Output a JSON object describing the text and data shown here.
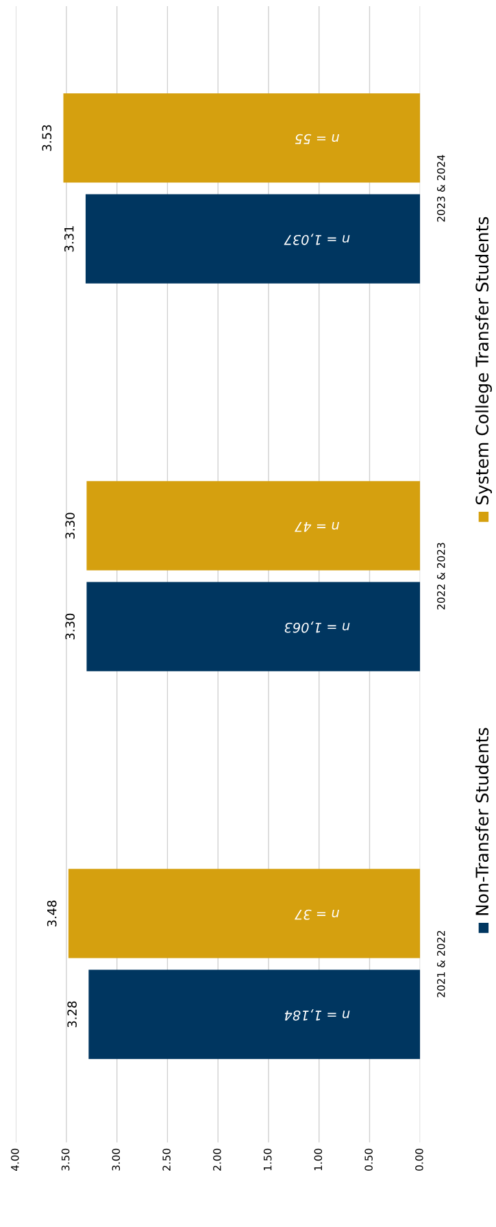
{
  "chart_data": {
    "type": "bar",
    "orientation": "horizontal",
    "categories": [
      "2023 & 2024",
      "2022 & 2023",
      "2021 & 2022"
    ],
    "series": [
      {
        "name": "Non-Transfer Students",
        "color": "#003660",
        "values": [
          3.31,
          3.3,
          3.28
        ],
        "value_labels": [
          "3.31",
          "3.30",
          "3.28"
        ]
      },
      {
        "name": "System College Transfer Students",
        "color": "#d5a00f",
        "values": [
          3.53,
          3.3,
          3.48
        ],
        "value_labels": [
          "3.53",
          "3.30",
          "3.48"
        ]
      }
    ],
    "xlim": [
      4,
      0
    ],
    "xticks": [
      {
        "value": 4,
        "label": "4.00"
      },
      {
        "value": 3.5,
        "label": "3.50"
      },
      {
        "value": 3,
        "label": "3.00"
      },
      {
        "value": 2.5,
        "label": "2.50"
      },
      {
        "value": 2,
        "label": "2.00"
      },
      {
        "value": 1.5,
        "label": "1.50"
      },
      {
        "value": 1,
        "label": "1.00"
      },
      {
        "value": 0.5,
        "label": "0.50"
      },
      {
        "value": 0,
        "label": "0.00"
      }
    ],
    "annotations": [
      "n = 1,037",
      "n = 55",
      "n = 1,063",
      "n = 47",
      "n = 1,184",
      "n = 37"
    ],
    "grid": "x",
    "legend": "right"
  }
}
